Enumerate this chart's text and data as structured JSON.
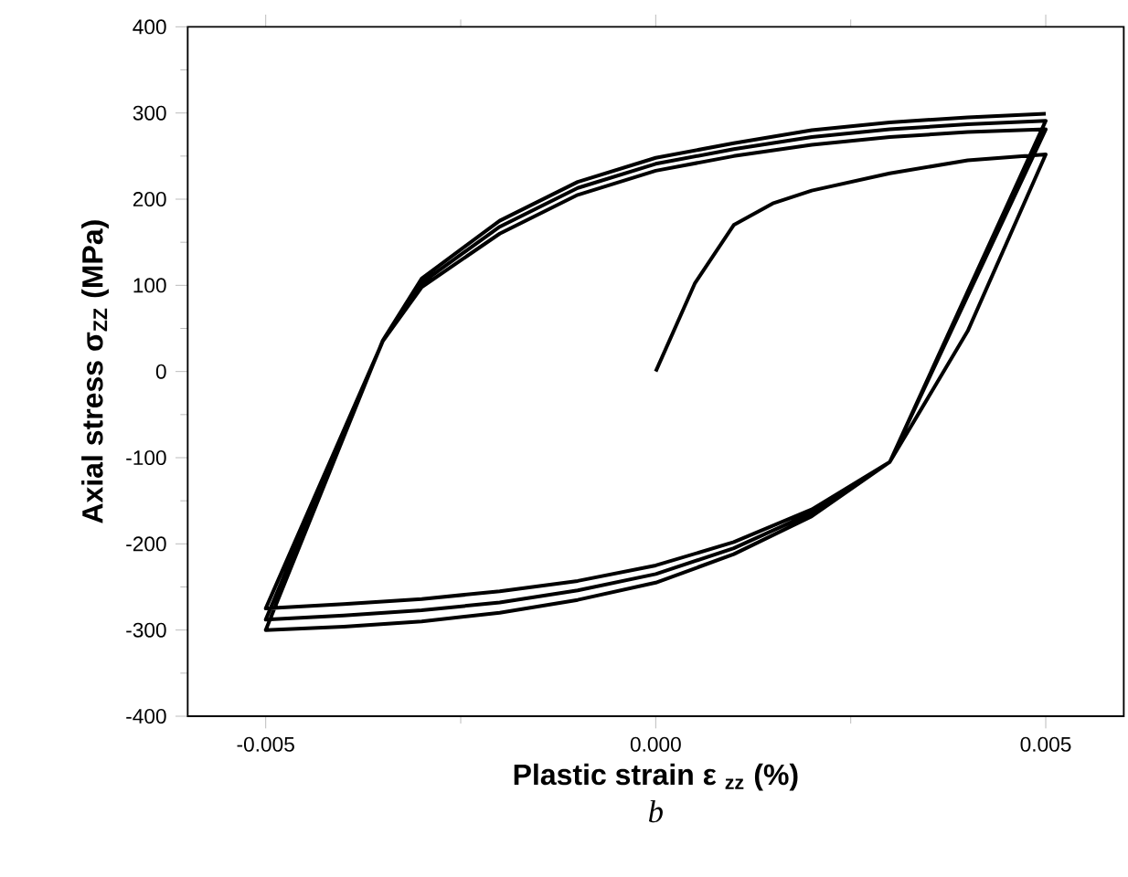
{
  "chart_data": {
    "type": "line",
    "xlabel": "Plastic strain ε $_{zz}$ (%)",
    "ylabel": "Axial stress  σ$_{ZZ}$ (MPa)",
    "annotations": [
      "b"
    ],
    "xlim": [
      -0.006,
      0.006
    ],
    "ylim": [
      -400,
      400
    ],
    "xticks": [
      -0.005,
      {
        "value": 0,
        "label": "0.000"
      },
      0.005
    ],
    "yticks": [
      -400,
      -300,
      -200,
      -100,
      0,
      100,
      200,
      300,
      400
    ],
    "marker": "none",
    "line_style": "solid",
    "series": [
      {
        "color": "#000000",
        "x": [
          0,
          0.0005,
          0.001,
          0.0015,
          0.002,
          0.003,
          0.004,
          0.005,
          0.004,
          0.003,
          0.002,
          0.001,
          0,
          -0.001,
          -0.002,
          -0.003,
          -0.004,
          -0.005,
          -0.0035,
          -0.003,
          -0.002,
          -0.001,
          0,
          0.001,
          0.002,
          0.003,
          0.004,
          0.005,
          0.003,
          0.002,
          0.001,
          0,
          -0.001,
          -0.002,
          -0.003,
          -0.004,
          -0.005,
          -0.0035,
          -0.003,
          -0.002,
          -0.001,
          0,
          0.001,
          0.002,
          0.003,
          0.004,
          0.005,
          0.003,
          0.002,
          0.001,
          0,
          -0.001,
          -0.002,
          -0.003,
          -0.004,
          -0.005,
          -0.0035,
          -0.003,
          -0.002,
          -0.001,
          0,
          0.001,
          0.002,
          0.003,
          0.004,
          0.005
        ],
        "values": [
          0,
          102,
          170,
          195,
          210,
          230,
          245,
          252,
          47,
          -105,
          -160,
          -198,
          -225,
          -243,
          -255,
          -264,
          -270,
          -275,
          35,
          98,
          160,
          205,
          233,
          250,
          263,
          272,
          278,
          281,
          -105,
          -164,
          -205,
          -235,
          -254,
          -268,
          -277,
          -283,
          -288,
          35,
          103,
          168,
          213,
          241,
          258,
          272,
          281,
          287,
          291,
          -105,
          -168,
          -212,
          -245,
          -265,
          -280,
          -290,
          -296,
          -300,
          36,
          108,
          175,
          220,
          248,
          265,
          280,
          289,
          295,
          299
        ]
      }
    ]
  }
}
